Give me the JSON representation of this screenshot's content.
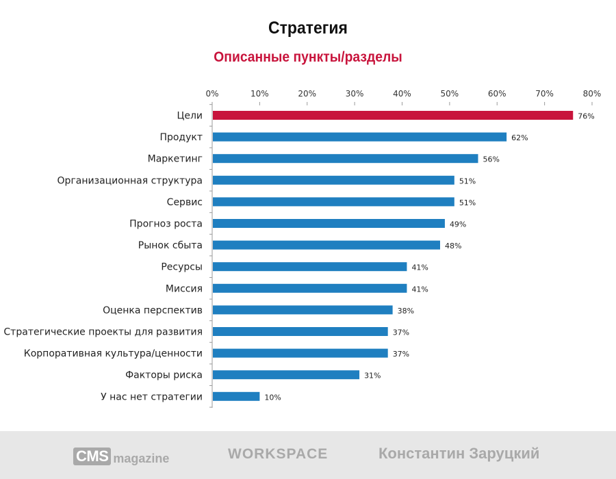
{
  "header": {
    "title": "Стратегия",
    "subtitle": "Описанные пункты/разделы"
  },
  "colors": {
    "highlight": "#c8143c",
    "bar": "#1f7fc0",
    "axis": "#9a9a9a",
    "subtitle": "#c8143c",
    "footer_text": "#a9a9a9"
  },
  "chart_data": {
    "type": "bar",
    "orientation": "horizontal",
    "title": "",
    "xlabel": "",
    "ylabel": "",
    "xlim": [
      0,
      80
    ],
    "x_ticks": [
      "0%",
      "10%",
      "20%",
      "30%",
      "40%",
      "50%",
      "60%",
      "70%",
      "80%"
    ],
    "x_axis_position": "top",
    "grid": false,
    "categories": [
      "Цели",
      "Продукт",
      "Маркетинг",
      "Организационная структура",
      "Сервис",
      "Прогноз роста",
      "Рынок сбыта",
      "Ресурсы",
      "Миссия",
      "Оценка перспектив",
      "Стратегические проекты для развития",
      "Корпоративная культура/ценности",
      "Факторы риска",
      "У нас нет стратегии"
    ],
    "values": [
      76,
      62,
      56,
      51,
      51,
      49,
      48,
      41,
      41,
      38,
      37,
      37,
      31,
      10
    ],
    "value_labels": [
      "76%",
      "62%",
      "56%",
      "51%",
      "51%",
      "49%",
      "48%",
      "41%",
      "41%",
      "38%",
      "37%",
      "37%",
      "31%",
      "10%"
    ],
    "highlighted_index": 0
  },
  "footer": {
    "logo_cms_box": "CMS",
    "logo_cms_word": "magazine",
    "logo_workspace": "WORKSPACE",
    "author": "Константин Заруцкий"
  }
}
